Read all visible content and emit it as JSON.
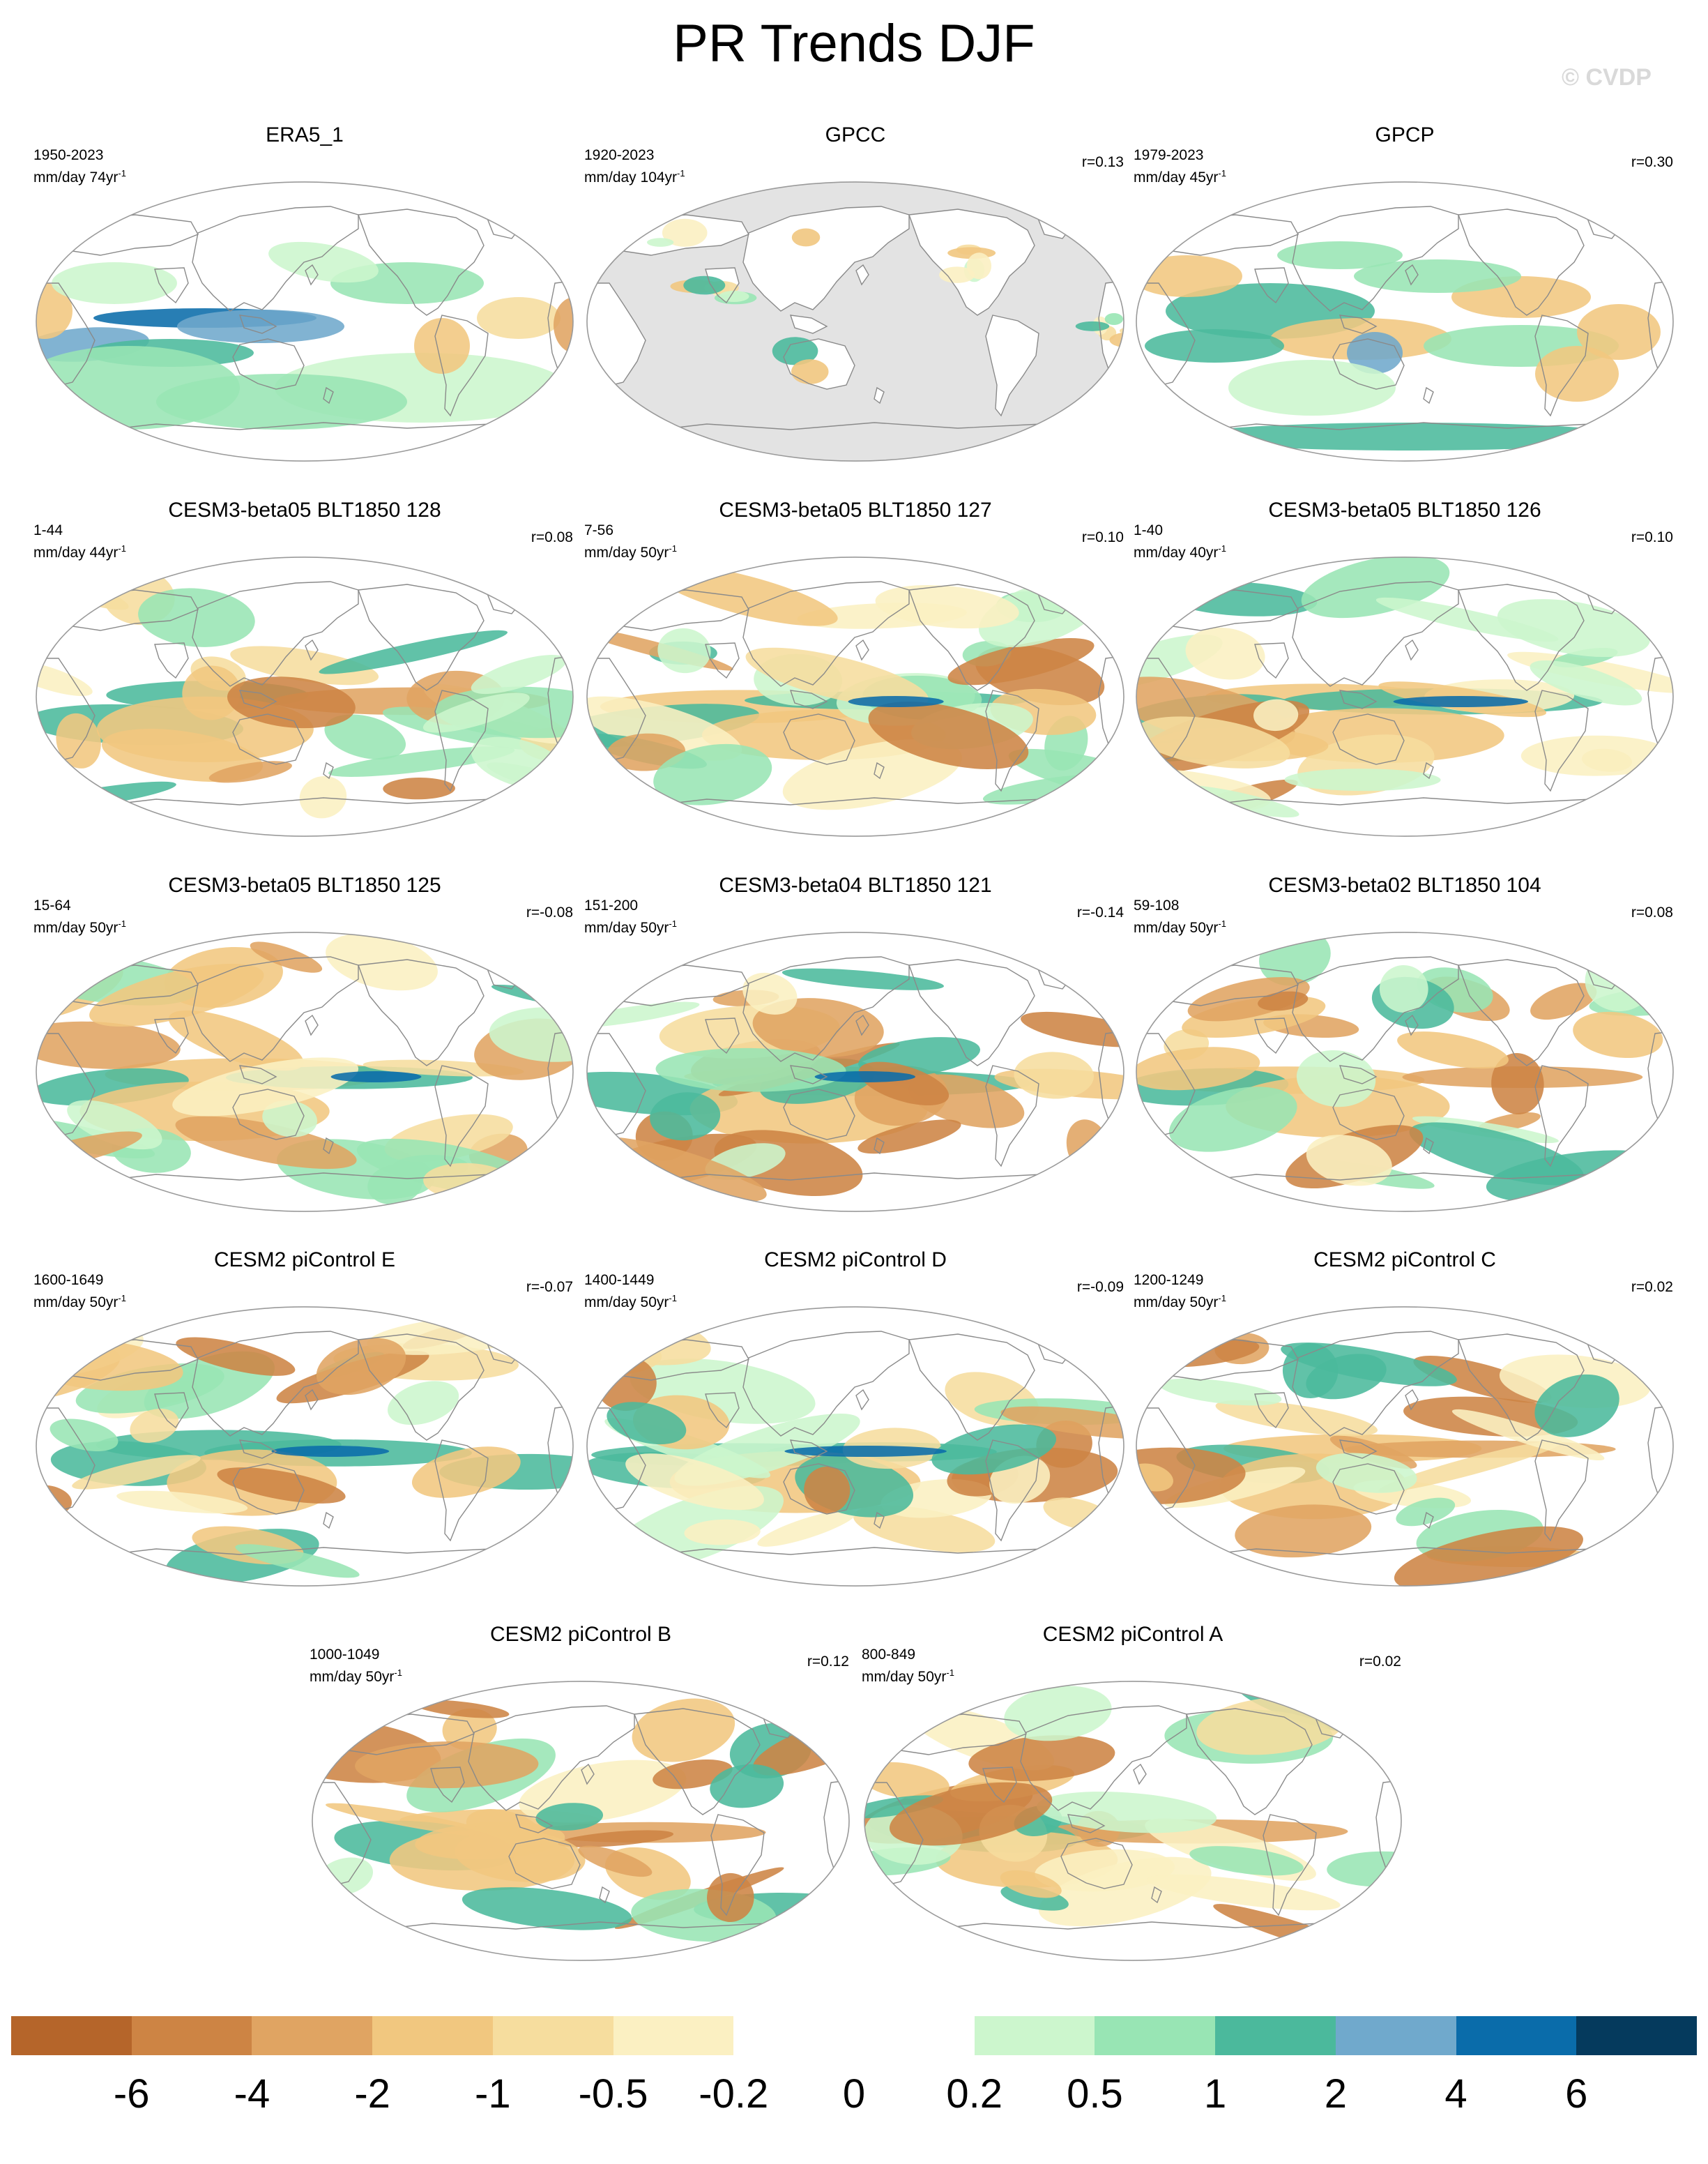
{
  "figure": {
    "title": "PR Trends DJF",
    "watermark": "© CVDP"
  },
  "panels": [
    {
      "title": "ERA5_1",
      "period": "1950-2023",
      "units": "mm/day 74yr",
      "r": "",
      "variant": "era5"
    },
    {
      "title": "GPCC",
      "period": "1920-2023",
      "units": "mm/day 104yr",
      "r": "r=0.13",
      "variant": "land"
    },
    {
      "title": "GPCP",
      "period": "1979-2023",
      "units": "mm/day 45yr",
      "r": "r=0.30",
      "variant": "gpcp"
    },
    {
      "title": "CESM3-beta05 BLT1850 128",
      "period": "1-44",
      "units": "mm/day 44yr",
      "r": "r=0.08",
      "variant": "m128"
    },
    {
      "title": "CESM3-beta05 BLT1850 127",
      "period": "7-56",
      "units": "mm/day 50yr",
      "r": "r=0.10",
      "variant": "m127"
    },
    {
      "title": "CESM3-beta05 BLT1850 126",
      "period": "1-40",
      "units": "mm/day 40yr",
      "r": "r=0.10",
      "variant": "m126"
    },
    {
      "title": "CESM3-beta05 BLT1850 125",
      "period": "15-64",
      "units": "mm/day 50yr",
      "r": "r=-0.08",
      "variant": "m125"
    },
    {
      "title": "CESM3-beta04 BLT1850 121",
      "period": "151-200",
      "units": "mm/day 50yr",
      "r": "r=-0.14",
      "variant": "m121"
    },
    {
      "title": "CESM3-beta02 BLT1850 104",
      "period": "59-108",
      "units": "mm/day 50yr",
      "r": "r=0.08",
      "variant": "m104"
    },
    {
      "title": "CESM2 piControl E",
      "period": "1600-1649",
      "units": "mm/day 50yr",
      "r": "r=-0.07",
      "variant": "pcE"
    },
    {
      "title": "CESM2 piControl D",
      "period": "1400-1449",
      "units": "mm/day 50yr",
      "r": "r=-0.09",
      "variant": "pcD"
    },
    {
      "title": "CESM2 piControl C",
      "period": "1200-1249",
      "units": "mm/day 50yr",
      "r": "r=0.02",
      "variant": "pcC"
    },
    {
      "title": "CESM2 piControl B",
      "period": "1000-1049",
      "units": "mm/day 50yr",
      "r": "r=0.12",
      "variant": "pcB"
    },
    {
      "title": "CESM2 piControl A",
      "period": "800-849",
      "units": "mm/day 50yr",
      "r": "r=0.02",
      "variant": "pcA"
    }
  ],
  "chart_data": {
    "type": "heatmap",
    "title": "PR Trends DJF",
    "projection": "Robinson, Pacific-centered",
    "colorbar": {
      "tick_labels": [
        "-6",
        "-4",
        "-2",
        "-1",
        "-0.5",
        "-0.2",
        "0",
        "0.2",
        "0.5",
        "1",
        "2",
        "4",
        "6"
      ],
      "levels": [
        -6,
        -4,
        -2,
        -1,
        -0.5,
        -0.2,
        0,
        0.2,
        0.5,
        1,
        2,
        4,
        6
      ],
      "colors": [
        "#b5652a",
        "#cd8444",
        "#e0a462",
        "#f1c77f",
        "#f6dd9e",
        "#fbf0c2",
        "#ffffff",
        "#ffffff",
        "#ccf6cd",
        "#98e5b4",
        "#4bb99c",
        "#70a9cc",
        "#0a6caa",
        "#053a5d"
      ]
    }
  }
}
